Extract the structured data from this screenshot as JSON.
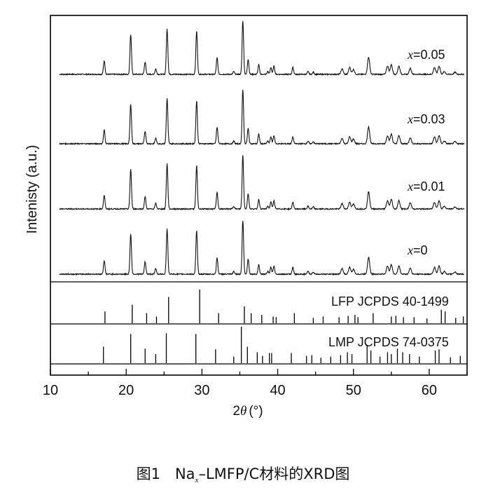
{
  "chart_data": {
    "type": "line",
    "xlabel_prefix": "2",
    "xlabel_symbol": "θ",
    "xlabel_unit": "(°)",
    "ylabel": "Intenisty (a.u.)",
    "xlim": [
      10,
      65
    ],
    "xticks": [
      10,
      20,
      30,
      40,
      50,
      60
    ],
    "major_peaks": [
      {
        "x": 17.1,
        "h": 0.2
      },
      {
        "x": 20.6,
        "h": 0.58
      },
      {
        "x": 22.5,
        "h": 0.18
      },
      {
        "x": 23.9,
        "h": 0.08
      },
      {
        "x": 25.4,
        "h": 0.66
      },
      {
        "x": 29.3,
        "h": 0.63
      },
      {
        "x": 32.0,
        "h": 0.24
      },
      {
        "x": 34.2,
        "h": 0.04
      },
      {
        "x": 35.4,
        "h": 0.78
      },
      {
        "x": 36.1,
        "h": 0.22
      },
      {
        "x": 37.5,
        "h": 0.14
      },
      {
        "x": 38.7,
        "h": 0.04
      },
      {
        "x": 39.1,
        "h": 0.1
      },
      {
        "x": 39.5,
        "h": 0.12
      },
      {
        "x": 42.0,
        "h": 0.1
      },
      {
        "x": 44.0,
        "h": 0.04
      },
      {
        "x": 44.7,
        "h": 0.03
      },
      {
        "x": 48.5,
        "h": 0.08
      },
      {
        "x": 49.5,
        "h": 0.1
      },
      {
        "x": 50.0,
        "h": 0.07
      },
      {
        "x": 52.0,
        "h": 0.25
      },
      {
        "x": 54.5,
        "h": 0.12
      },
      {
        "x": 55.0,
        "h": 0.14
      },
      {
        "x": 56.0,
        "h": 0.12
      },
      {
        "x": 57.5,
        "h": 0.09
      },
      {
        "x": 60.7,
        "h": 0.1
      },
      {
        "x": 61.3,
        "h": 0.12
      },
      {
        "x": 62.0,
        "h": 0.04
      },
      {
        "x": 63.4,
        "h": 0.03
      }
    ],
    "series": [
      {
        "name": "x=0.05",
        "x_symbol": "x",
        "value_text": "=0.05",
        "x_value": 0.05
      },
      {
        "name": "x=0.03",
        "x_symbol": "x",
        "value_text": "=0.03",
        "x_value": 0.03
      },
      {
        "name": "x=0.01",
        "x_symbol": "x",
        "value_text": "=0.01",
        "x_value": 0.01
      },
      {
        "name": "x=0",
        "x_symbol": "x",
        "value_text": "=0",
        "x_value": 0
      }
    ],
    "references": [
      {
        "label": "LFP JCPDS 40-1499",
        "lines": [
          {
            "x": 17.2,
            "h": 0.35
          },
          {
            "x": 20.8,
            "h": 0.55
          },
          {
            "x": 22.7,
            "h": 0.3
          },
          {
            "x": 24.0,
            "h": 0.2
          },
          {
            "x": 25.6,
            "h": 0.78
          },
          {
            "x": 29.7,
            "h": 1.0
          },
          {
            "x": 32.2,
            "h": 0.3
          },
          {
            "x": 35.6,
            "h": 0.5
          },
          {
            "x": 36.5,
            "h": 0.3
          },
          {
            "x": 37.9,
            "h": 0.25
          },
          {
            "x": 39.4,
            "h": 0.2
          },
          {
            "x": 39.8,
            "h": 0.18
          },
          {
            "x": 42.2,
            "h": 0.3
          },
          {
            "x": 44.7,
            "h": 0.16
          },
          {
            "x": 46.0,
            "h": 0.2
          },
          {
            "x": 48.1,
            "h": 0.18
          },
          {
            "x": 49.3,
            "h": 0.22
          },
          {
            "x": 50.2,
            "h": 0.25
          },
          {
            "x": 50.6,
            "h": 0.18
          },
          {
            "x": 52.6,
            "h": 0.3
          },
          {
            "x": 55.0,
            "h": 0.2
          },
          {
            "x": 55.6,
            "h": 0.22
          },
          {
            "x": 56.6,
            "h": 0.18
          },
          {
            "x": 58.0,
            "h": 0.18
          },
          {
            "x": 59.7,
            "h": 0.14
          },
          {
            "x": 61.6,
            "h": 0.4
          },
          {
            "x": 62.1,
            "h": 0.35
          },
          {
            "x": 63.5,
            "h": 0.16
          },
          {
            "x": 64.5,
            "h": 0.2
          }
        ]
      },
      {
        "label": "LMP JCPDS 74-0375",
        "lines": [
          {
            "x": 17.0,
            "h": 0.45
          },
          {
            "x": 20.6,
            "h": 0.8
          },
          {
            "x": 22.5,
            "h": 0.4
          },
          {
            "x": 23.9,
            "h": 0.25
          },
          {
            "x": 25.3,
            "h": 0.82
          },
          {
            "x": 29.2,
            "h": 0.8
          },
          {
            "x": 31.8,
            "h": 0.38
          },
          {
            "x": 34.2,
            "h": 0.18
          },
          {
            "x": 35.2,
            "h": 1.0
          },
          {
            "x": 36.0,
            "h": 0.45
          },
          {
            "x": 37.3,
            "h": 0.3
          },
          {
            "x": 38.0,
            "h": 0.2
          },
          {
            "x": 38.9,
            "h": 0.28
          },
          {
            "x": 39.2,
            "h": 0.28
          },
          {
            "x": 41.8,
            "h": 0.28
          },
          {
            "x": 43.8,
            "h": 0.2
          },
          {
            "x": 44.5,
            "h": 0.22
          },
          {
            "x": 45.7,
            "h": 0.15
          },
          {
            "x": 47.0,
            "h": 0.18
          },
          {
            "x": 48.3,
            "h": 0.22
          },
          {
            "x": 49.2,
            "h": 0.3
          },
          {
            "x": 49.8,
            "h": 0.25
          },
          {
            "x": 51.8,
            "h": 0.5
          },
          {
            "x": 52.3,
            "h": 0.35
          },
          {
            "x": 53.5,
            "h": 0.18
          },
          {
            "x": 54.5,
            "h": 0.3
          },
          {
            "x": 55.0,
            "h": 0.25
          },
          {
            "x": 55.8,
            "h": 0.4
          },
          {
            "x": 56.5,
            "h": 0.3
          },
          {
            "x": 57.4,
            "h": 0.25
          },
          {
            "x": 58.7,
            "h": 0.18
          },
          {
            "x": 60.8,
            "h": 0.35
          },
          {
            "x": 61.3,
            "h": 0.38
          },
          {
            "x": 62.8,
            "h": 0.16
          },
          {
            "x": 64.1,
            "h": 0.2
          }
        ]
      }
    ]
  },
  "caption": {
    "prefix": "图1",
    "compound": "Na",
    "subscript": "x",
    "rest": "–LMFP/C材料的XRD图"
  }
}
